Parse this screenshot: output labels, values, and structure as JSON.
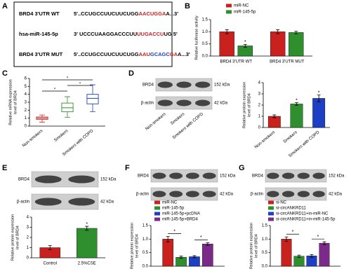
{
  "sequence_panel": {
    "label": "A",
    "rows": [
      {
        "name": "BRD4 3'UTR WT",
        "parts": [
          {
            "text": "5'..CCUGCCUUCUUCUGG",
            "color": "#000000"
          },
          {
            "text": "AACUGGA",
            "color": "#c9211e"
          },
          {
            "text": "A...3'",
            "color": "#000000"
          }
        ]
      },
      {
        "name": "hsa-miR-145-5p",
        "parts": [
          {
            "text": "3' UCCCUAAGGACCCUU",
            "color": "#000000"
          },
          {
            "text": "UUGACCU",
            "color": "#c9211e"
          },
          {
            "text": "UG 5'",
            "color": "#000000"
          }
        ]
      },
      {
        "name": "BRD4 3'UTR MUT",
        "parts": [
          {
            "text": "5'..CCUGCCUUCUUCUGG",
            "color": "#000000"
          },
          {
            "text": "AAU",
            "color": "#c9211e"
          },
          {
            "text": "GCAGC",
            "color": "#1c3fc4"
          },
          {
            "text": "GA",
            "color": "#c9211e"
          },
          {
            "text": "A...3'",
            "color": "#000000"
          }
        ]
      }
    ]
  },
  "blots": [
    {
      "rows": [
        "BRD4",
        "β-actin"
      ],
      "sizes": [
        "152 kDa",
        "42 kDa"
      ],
      "lanes": [
        "Non-smokers",
        "Smokers",
        "Smokers with COPD"
      ]
    },
    {
      "rows": [
        "BRD4",
        "β-actin"
      ],
      "sizes": [
        "152 kDa",
        "42 kDa"
      ]
    },
    {
      "rows": [
        "BRD4",
        "β-actin"
      ],
      "sizes": [
        "152 kDa",
        "42 kDa"
      ]
    },
    {
      "rows": [
        "BRD4",
        "β-actin"
      ],
      "sizes": [
        "152 kDa",
        "42 kDa"
      ]
    }
  ],
  "chart_data": [
    {
      "label": "B",
      "type": "bar",
      "categories": [
        "BRD4 3'UTR WT",
        "BRD4 3'UTR MUT"
      ],
      "series": [
        {
          "name": "miR-NC",
          "color": "#c9211e",
          "values": [
            1.0,
            1.0
          ],
          "errors": [
            0.08,
            0.08
          ]
        },
        {
          "name": "miR-145-5p",
          "color": "#2f8f2f",
          "values": [
            0.42,
            0.97
          ],
          "errors": [
            0.06,
            0.05
          ]
        }
      ],
      "ylabel": [
        "Relative luciferase activity"
      ],
      "ylim": [
        0,
        1.5
      ],
      "yticks": [
        {
          "value": 0,
          "label": "0.0"
        },
        0.5,
        {
          "value": 1,
          "label": "1.0"
        },
        1.5
      ],
      "annotations": [
        "*"
      ]
    },
    {
      "label": "C",
      "type": "box",
      "categories": [
        "Non-smokers",
        "Smokers",
        "Smokers with COPD"
      ],
      "boxes": [
        {
          "min": 0.5,
          "q1": 0.85,
          "median": 1.0,
          "q3": 1.15,
          "max": 1.4
        },
        {
          "min": 1.1,
          "q1": 1.8,
          "median": 2.3,
          "q3": 2.9,
          "max": 3.7
        },
        {
          "min": 1.8,
          "q1": 2.8,
          "median": 3.5,
          "q3": 4.0,
          "max": 5.2
        }
      ],
      "colors": [
        "#c9211e",
        "#2f8f2f",
        "#1c3fc4"
      ],
      "ylabel": [
        "Relative mRNA expression",
        "level of BRD4"
      ],
      "ylim": [
        0,
        6
      ],
      "yticks": [
        0,
        1,
        2,
        3,
        4,
        5,
        6
      ],
      "annotations": [
        "*",
        "*",
        "*"
      ]
    },
    {
      "label": "D",
      "type": "bar",
      "categories": [
        "Non-smokers",
        "Smokers",
        "Smokers with COPD"
      ],
      "values": [
        1.0,
        2.1,
        2.6
      ],
      "errors": [
        0.12,
        0.12,
        0.3
      ],
      "colors": [
        "#c9211e",
        "#2f8f2f",
        "#1c3fc4"
      ],
      "ylabel": [
        "Relative protein expression",
        "level of BRD4"
      ],
      "ylim": [
        0,
        4
      ],
      "yticks": [
        0,
        1,
        2,
        3,
        4
      ],
      "annotations": [
        "*",
        "*"
      ]
    },
    {
      "label": "E",
      "type": "bar",
      "categories": [
        "Control",
        "2.5%CSE"
      ],
      "values": [
        1.0,
        2.9
      ],
      "errors": [
        0.2,
        0.2
      ],
      "colors": [
        "#c9211e",
        "#2f8f2f"
      ],
      "ylabel": [
        "Relative protein expression",
        "level of BRD4"
      ],
      "ylim": [
        0,
        4
      ],
      "yticks": [
        0,
        1,
        2,
        3,
        4
      ],
      "annotations": [
        "*"
      ]
    },
    {
      "label": "F",
      "type": "bar",
      "series": [
        {
          "name": "miR-NC",
          "color": "#c9211e",
          "values": [
            1.0
          ],
          "errors": [
            0.1
          ]
        },
        {
          "name": "miR-145-5p",
          "color": "#2f8f2f",
          "values": [
            0.33
          ],
          "errors": [
            0.04
          ]
        },
        {
          "name": "miR-145-5p+pcDNA",
          "color": "#1c3fc4",
          "values": [
            0.35
          ],
          "errors": [
            0.04
          ]
        },
        {
          "name": "miR-145-5p+BRD4",
          "color": "#7b2a8a",
          "values": [
            0.82
          ],
          "errors": [
            0.05
          ]
        }
      ],
      "ylabel": [
        "Relative protein expression",
        "level of BRD4"
      ],
      "ylim": [
        0,
        1.5
      ],
      "yticks": [
        {
          "value": 0,
          "label": "0.0"
        },
        0.5,
        {
          "value": 1,
          "label": "1.0"
        },
        1.5
      ],
      "annotations": [
        "*",
        "*"
      ]
    },
    {
      "label": "G",
      "type": "bar",
      "series": [
        {
          "name": "si-NC",
          "color": "#c9211e",
          "values": [
            1.0
          ],
          "errors": [
            0.08
          ]
        },
        {
          "name": "si-circANKRD11",
          "color": "#2f8f2f",
          "values": [
            0.37
          ],
          "errors": [
            0.04
          ]
        },
        {
          "name": "si-circANKRD11+in-miR-NC",
          "color": "#1c3fc4",
          "values": [
            0.38
          ],
          "errors": [
            0.05
          ]
        },
        {
          "name": "si-circANKRD11+in-miR-145-5p",
          "color": "#7b2a8a",
          "values": [
            0.85
          ],
          "errors": [
            0.05
          ]
        }
      ],
      "ylabel": [
        "Relative protein expression",
        "level of BRD4"
      ],
      "ylim": [
        0,
        1.5
      ],
      "yticks": [
        {
          "value": 0,
          "label": "0.0"
        },
        0.5,
        {
          "value": 1,
          "label": "1.0"
        },
        1.5
      ],
      "annotations": [
        "*",
        "*"
      ]
    }
  ]
}
